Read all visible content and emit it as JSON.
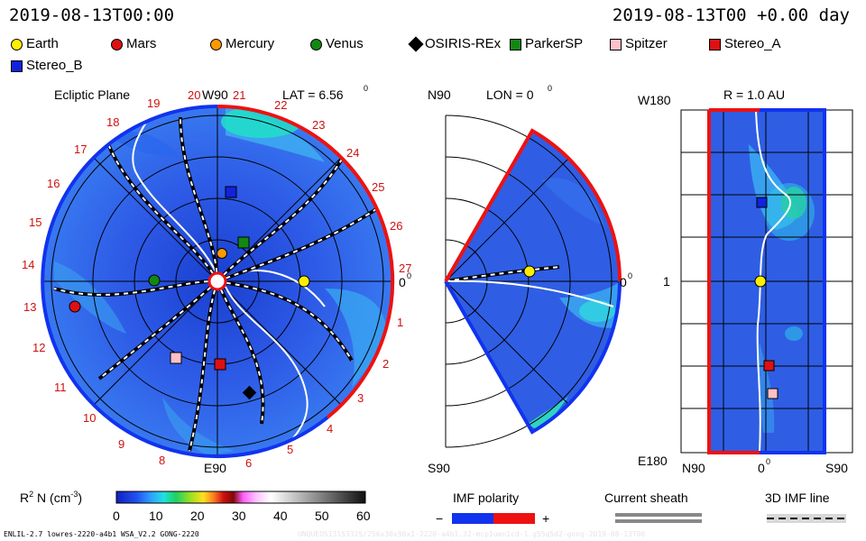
{
  "header": {
    "left_time": "2019-08-13T00:00",
    "right_time": "2019-08-13T00 +0.00 day"
  },
  "legend": [
    {
      "name": "Earth",
      "color": "#ffee00",
      "shape": "circle"
    },
    {
      "name": "Mars",
      "color": "#dd1111",
      "shape": "circle"
    },
    {
      "name": "Mercury",
      "color": "#ff9900",
      "shape": "circle"
    },
    {
      "name": "Venus",
      "color": "#118811",
      "shape": "circle"
    },
    {
      "name": "OSIRIS-REx",
      "color": "#000000",
      "shape": "diamond"
    },
    {
      "name": "ParkerSP",
      "color": "#118811",
      "shape": "square"
    },
    {
      "name": "Spitzer",
      "color": "#ffc0c8",
      "shape": "square"
    },
    {
      "name": "Stereo_A",
      "color": "#dd1111",
      "shape": "square"
    },
    {
      "name": "Stereo_B",
      "color": "#1122dd",
      "shape": "square"
    }
  ],
  "panels": {
    "ecliptic": {
      "title": "Ecliptic Plane",
      "top_label": "W90",
      "lat_label": "LAT = 6.56",
      "lat_sup": "0",
      "bottom_label": "E90",
      "right_label": "0",
      "right_sup": "0",
      "carrington_longitudes": [
        "1",
        "2",
        "3",
        "4",
        "5",
        "6",
        "7",
        "8",
        "9",
        "10",
        "11",
        "12",
        "13",
        "14",
        "15",
        "16",
        "17",
        "18",
        "19",
        "20",
        "21",
        "22",
        "23",
        "24",
        "25",
        "26",
        "27"
      ]
    },
    "meridional": {
      "top_label": "N90",
      "lon_label": "LON = 0",
      "lon_sup": "0",
      "bottom_label": "S90",
      "right_label": "0",
      "right_sup": "0"
    },
    "sphere": {
      "title": "R = 1.0 AU",
      "top_left": "W180",
      "mid_left": "1",
      "bottom_left": "E180",
      "x_left": "N90",
      "x_mid": "0",
      "x_mid_sup": "0",
      "x_right": "S90"
    }
  },
  "colorbar": {
    "label": "R",
    "label_sup": "2",
    "label_rest": " N (cm",
    "label_exp": "-3",
    "label_end": ")",
    "ticks": [
      "0",
      "10",
      "20",
      "30",
      "40",
      "50",
      "60"
    ]
  },
  "keys": {
    "imf_title": "IMF polarity",
    "imf_minus": "−",
    "imf_plus": "+",
    "sheath_title": "Current sheath",
    "line_title": "3D IMF line"
  },
  "footer": {
    "left": "ENLIL-2.7 lowres-2220-a4b1 WSA_V2.2 GONG-2220",
    "right": "UNQUEOS13153325/256x30x90x1-2220-a4b1.32-mcp1umn1cd-1.g55q5d2-gong-2019-08-13T00"
  },
  "colors": {
    "bg_blue": "#2f5fe0",
    "mid_blue": "#3aa0f0",
    "cyan": "#20e0d0",
    "polarity_neg": "#1133ee",
    "polarity_pos": "#ee1111"
  }
}
